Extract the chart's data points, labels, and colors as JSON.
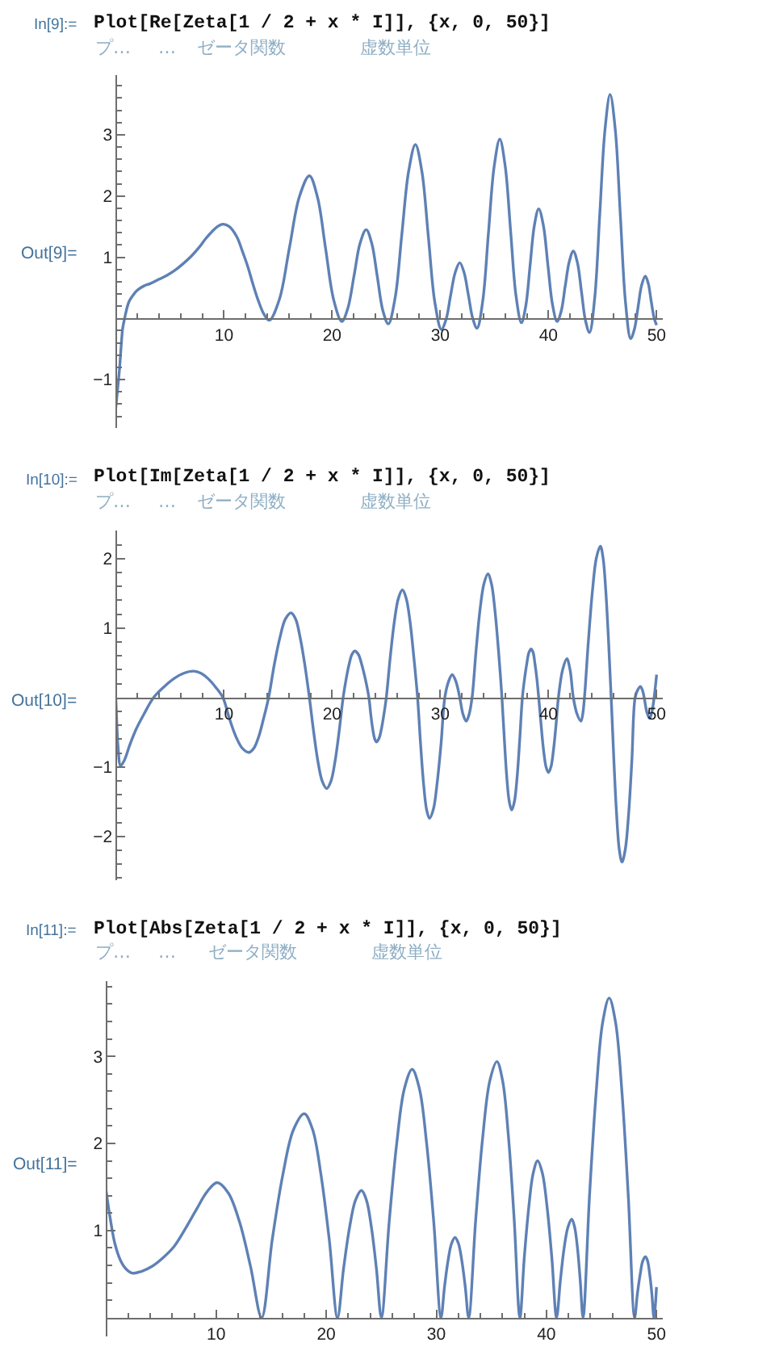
{
  "chart_data": [
    {
      "type": "line",
      "title": "Plot[Re[Zeta[1 / 2 + x * I]], {x, 0, 50}]",
      "annotations": [
        "In[9]:=",
        "プ…",
        "…",
        "ゼータ関数",
        "虚数単位",
        "Out[9]="
      ],
      "x": [
        0,
        0.15,
        0.35,
        0.5,
        0.64,
        0.84,
        1.05,
        1.24,
        1.6,
        1.98,
        2.6,
        3.2,
        4,
        4.7,
        5.5,
        6.2,
        7,
        7.7,
        8.3,
        8.9,
        9.4,
        9.9,
        10.5,
        11.2,
        11.7,
        12.2,
        12.7,
        13.2,
        13.7,
        14.2,
        15.125,
        16.05,
        16.975,
        17.9,
        18.65,
        19.4,
        20.15,
        20.9,
        21.46,
        22.03,
        22.59,
        23.15,
        23.66,
        24.18,
        24.69,
        25.2,
        25.83,
        26.45,
        27.08,
        27.7,
        28.3,
        28.9,
        29.5,
        30.1,
        30.53,
        30.95,
        31.38,
        31.8,
        32.2,
        32.6,
        33,
        33.4,
        33.93,
        34.45,
        34.98,
        35.5,
        36,
        36.5,
        37,
        37.5,
        37.9,
        38.3,
        38.7,
        39.1,
        39.53,
        39.95,
        40.38,
        40.8,
        41.18,
        41.55,
        41.93,
        42.3,
        42.68,
        43.05,
        43.43,
        43.8,
        44.28,
        44.75,
        45.23,
        45.7,
        46.18,
        46.65,
        47.13,
        47.6,
        47.94,
        48.28,
        48.61,
        48.95,
        49.23,
        49.5,
        49.78,
        50
      ],
      "values": [
        -1.46,
        -1.2,
        -0.82,
        -0.45,
        -0.16,
        0.02,
        0.18,
        0.28,
        0.38,
        0.46,
        0.53,
        0.57,
        0.64,
        0.7,
        0.79,
        0.89,
        1.02,
        1.16,
        1.3,
        1.42,
        1.5,
        1.54,
        1.5,
        1.33,
        1.1,
        0.85,
        0.55,
        0.28,
        0.07,
        -0.03,
        0.31,
        1.15,
        1.99,
        2.33,
        1.98,
        1.14,
        0.3,
        -0.05,
        0.17,
        0.7,
        1.23,
        1.45,
        1.23,
        0.68,
        0.13,
        -0.09,
        0.34,
        1.38,
        2.41,
        2.84,
        2.4,
        1.33,
        0.26,
        -0.18,
        -0.02,
        0.37,
        0.75,
        0.91,
        0.75,
        0.38,
        0,
        -0.16,
        0.29,
        1.39,
        2.48,
        2.93,
        2.49,
        1.43,
        0.37,
        -0.07,
        0.2,
        0.86,
        1.52,
        1.79,
        1.52,
        0.87,
        0.22,
        -0.05,
        0.12,
        0.53,
        0.93,
        1.1,
        0.91,
        0.44,
        -0.04,
        -0.23,
        0.34,
        1.72,
        3.09,
        3.66,
        3.08,
        1.67,
        0.25,
        -0.33,
        -0.18,
        0.18,
        0.54,
        0.69,
        0.57,
        0.28,
        0,
        -0.11
      ],
      "color": "#5e81b5",
      "xlim": [
        0,
        50.6
      ],
      "ylim": [
        -1.79,
        3.97
      ],
      "xticks": [
        {
          "value": 2,
          "label": null
        },
        {
          "value": 4,
          "label": null
        },
        {
          "value": 6,
          "label": null
        },
        {
          "value": 8,
          "label": null
        },
        10,
        {
          "value": 12,
          "label": null
        },
        {
          "value": 14,
          "label": null
        },
        {
          "value": 16,
          "label": null
        },
        {
          "value": 18,
          "label": null
        },
        20,
        {
          "value": 22,
          "label": null
        },
        {
          "value": 24,
          "label": null
        },
        {
          "value": 26,
          "label": null
        },
        {
          "value": 28,
          "label": null
        },
        30,
        {
          "value": 32,
          "label": null
        },
        {
          "value": 34,
          "label": null
        },
        {
          "value": 36,
          "label": null
        },
        {
          "value": 38,
          "label": null
        },
        40,
        {
          "value": 42,
          "label": null
        },
        {
          "value": 44,
          "label": null
        },
        {
          "value": 46,
          "label": null
        },
        {
          "value": 48,
          "label": null
        },
        50
      ],
      "yticks": [
        {
          "value": -1.6,
          "label": null
        },
        {
          "value": -1.4,
          "label": null
        },
        {
          "value": -1.2,
          "label": null
        },
        {
          "value": -1,
          "label": "−1"
        },
        {
          "value": -0.8,
          "label": null
        },
        {
          "value": -0.6,
          "label": null
        },
        {
          "value": -0.4,
          "label": null
        },
        {
          "value": -0.2,
          "label": null
        },
        {
          "value": 0.2,
          "label": null
        },
        {
          "value": 0.4,
          "label": null
        },
        {
          "value": 0.6,
          "label": null
        },
        {
          "value": 0.8,
          "label": null
        },
        1,
        {
          "value": 1.2,
          "label": null
        },
        {
          "value": 1.4,
          "label": null
        },
        {
          "value": 1.6,
          "label": null
        },
        {
          "value": 1.8,
          "label": null
        },
        2,
        {
          "value": 2.2,
          "label": null
        },
        {
          "value": 2.4,
          "label": null
        },
        {
          "value": 2.6,
          "label": null
        },
        {
          "value": 2.8,
          "label": null
        },
        3,
        {
          "value": 3.2,
          "label": null
        },
        {
          "value": 3.4,
          "label": null
        },
        {
          "value": 3.6,
          "label": null
        },
        {
          "value": 3.8,
          "label": null
        }
      ]
    },
    {
      "type": "line",
      "title": "Plot[Im[Zeta[1 / 2 + x * I]], {x, 0, 50}]",
      "annotations": [
        "In[10]:=",
        "プ…",
        "…",
        "ゼータ関数",
        "虚数単位",
        "Out[10]="
      ],
      "x": [
        0,
        0.1,
        0.2,
        0.45,
        0.8,
        1.3,
        1.9,
        2.6,
        3.5,
        4.43,
        5.35,
        6.28,
        7.2,
        7.88,
        8.55,
        9.23,
        9.9,
        10.5,
        11.1,
        11.7,
        12.3,
        12.76,
        13.22,
        13.67,
        14.13,
        14.65,
        15.17,
        15.68,
        16.2,
        16.63,
        17.05,
        17.48,
        17.9,
        18.3,
        18.7,
        19.1,
        19.5,
        19.88,
        20.26,
        20.64,
        21.02,
        21.29,
        21.56,
        21.83,
        22.1,
        22.43,
        22.75,
        23.08,
        23.4,
        23.58,
        23.75,
        23.93,
        24.1,
        24.33,
        24.56,
        24.78,
        25.01,
        25.38,
        25.76,
        26.13,
        26.5,
        26.85,
        27.2,
        27.55,
        27.9,
        28.18,
        28.45,
        28.73,
        29,
        29.36,
        29.71,
        30.07,
        30.42,
        30.76,
        31.1,
        31.45,
        31.8,
        32.1,
        32.4,
        32.67,
        32.94,
        33.31,
        33.67,
        34.04,
        34.4,
        34.73,
        35.05,
        35.38,
        35.7,
        35.93,
        36.15,
        36.38,
        36.6,
        36.85,
        37.1,
        37.34,
        37.59,
        37.79,
        38,
        38.2,
        38.4,
        38.58,
        38.75,
        38.93,
        39.1,
        39.33,
        39.55,
        39.78,
        40,
        40.23,
        40.46,
        40.69,
        40.92,
        41.31,
        41.7,
        42,
        42.3,
        42.65,
        43,
        43.17,
        43.33,
        43.7,
        44.07,
        44.43,
        44.8,
        45.05,
        45.3,
        45.55,
        45.8,
        46.05,
        46.3,
        46.55,
        46.8,
        47.1,
        47.41,
        47.71,
        48.01,
        48.25,
        48.5,
        48.68,
        48.85,
        49.1,
        49.35,
        49.56,
        49.77,
        50
      ],
      "values": [
        0,
        -0.38,
        -0.68,
        -0.98,
        -0.9,
        -0.68,
        -0.45,
        -0.24,
        0,
        0.15,
        0.27,
        0.35,
        0.38,
        0.35,
        0.27,
        0.15,
        0,
        -0.3,
        -0.56,
        -0.73,
        -0.79,
        -0.73,
        -0.56,
        -0.3,
        0,
        0.47,
        0.86,
        1.13,
        1.22,
        1.13,
        0.86,
        0.47,
        0,
        -0.5,
        -0.93,
        -1.21,
        -1.31,
        -1.21,
        -0.93,
        -0.5,
        0,
        0.26,
        0.47,
        0.62,
        0.67,
        0.62,
        0.47,
        0.26,
        0,
        -0.25,
        -0.45,
        -0.59,
        -0.64,
        -0.59,
        -0.45,
        -0.25,
        0,
        0.59,
        1.1,
        1.43,
        1.55,
        1.43,
        1.1,
        0.59,
        0,
        -0.67,
        -1.23,
        -1.61,
        -1.74,
        -1.61,
        -1.23,
        -0.67,
        0,
        0.23,
        0.33,
        0.23,
        0,
        -0.24,
        -0.34,
        -0.24,
        0,
        0.68,
        1.26,
        1.64,
        1.78,
        1.64,
        1.26,
        0.68,
        0,
        -0.62,
        -1.15,
        -1.5,
        -1.62,
        -1.5,
        -1.15,
        -0.62,
        0,
        0.27,
        0.49,
        0.65,
        0.7,
        0.65,
        0.49,
        0.27,
        0,
        -0.41,
        -0.76,
        -1,
        -1.08,
        -1,
        -0.76,
        -0.41,
        0,
        0.4,
        0.56,
        0.4,
        0,
        -0.24,
        -0.34,
        -0.24,
        0,
        0.83,
        1.54,
        2.01,
        2.18,
        2.01,
        1.54,
        0.83,
        0,
        -0.91,
        -1.68,
        -2.19,
        -2.37,
        -2.19,
        -1.68,
        -0.91,
        0,
        0.11,
        0.16,
        0.11,
        0,
        -0.21,
        -0.3,
        -0.21,
        0,
        0.33
      ],
      "color": "#5e81b5",
      "xlim": [
        0,
        50.6
      ],
      "ylim": [
        -2.63,
        2.41
      ],
      "xticks": [
        {
          "value": 2,
          "label": null
        },
        {
          "value": 4,
          "label": null
        },
        {
          "value": 6,
          "label": null
        },
        {
          "value": 8,
          "label": null
        },
        10,
        {
          "value": 12,
          "label": null
        },
        {
          "value": 14,
          "label": null
        },
        {
          "value": 16,
          "label": null
        },
        {
          "value": 18,
          "label": null
        },
        20,
        {
          "value": 22,
          "label": null
        },
        {
          "value": 24,
          "label": null
        },
        {
          "value": 26,
          "label": null
        },
        {
          "value": 28,
          "label": null
        },
        30,
        {
          "value": 32,
          "label": null
        },
        {
          "value": 34,
          "label": null
        },
        {
          "value": 36,
          "label": null
        },
        {
          "value": 38,
          "label": null
        },
        40,
        {
          "value": 42,
          "label": null
        },
        {
          "value": 44,
          "label": null
        },
        {
          "value": 46,
          "label": null
        },
        {
          "value": 48,
          "label": null
        },
        50
      ],
      "yticks": [
        {
          "value": -2.6,
          "label": null
        },
        {
          "value": -2.4,
          "label": null
        },
        {
          "value": -2.2,
          "label": null
        },
        {
          "value": -2,
          "label": "−2"
        },
        {
          "value": -1.8,
          "label": null
        },
        {
          "value": -1.6,
          "label": null
        },
        {
          "value": -1.4,
          "label": null
        },
        {
          "value": -1.2,
          "label": null
        },
        {
          "value": -1,
          "label": "−1"
        },
        {
          "value": -0.8,
          "label": null
        },
        {
          "value": -0.6,
          "label": null
        },
        {
          "value": -0.4,
          "label": null
        },
        {
          "value": -0.2,
          "label": null
        },
        {
          "value": 0.2,
          "label": null
        },
        {
          "value": 0.4,
          "label": null
        },
        {
          "value": 0.6,
          "label": null
        },
        {
          "value": 0.8,
          "label": null
        },
        1,
        {
          "value": 1.2,
          "label": null
        },
        {
          "value": 1.4,
          "label": null
        },
        {
          "value": 1.6,
          "label": null
        },
        {
          "value": 1.8,
          "label": null
        },
        2,
        {
          "value": 2.2,
          "label": null
        }
      ]
    },
    {
      "type": "line",
      "title": "Plot[Abs[Zeta[1 / 2 + x * I]], {x, 0, 50}]",
      "annotations": [
        "In[11]:=",
        "プ…",
        "…",
        "ゼータ関数",
        "虚数単位",
        "Out[11]="
      ],
      "x": [
        0,
        0.4,
        0.8,
        1.3,
        1.8,
        2.4,
        3.2,
        4.2,
        5.2,
        6.2,
        7.2,
        8.2,
        9.2,
        10.1,
        11.11,
        12.12,
        13.12,
        14.13,
        15.1,
        16.07,
        17.03,
        18,
        18.76,
        19.51,
        20.27,
        21.02,
        21.57,
        22.11,
        22.66,
        23.2,
        23.65,
        24.11,
        24.56,
        25.01,
        25.71,
        26.41,
        27.1,
        27.8,
        28.46,
        29.11,
        29.77,
        30.42,
        30.74,
        31.06,
        31.38,
        31.7,
        32.01,
        32.32,
        32.63,
        32.94,
        33.58,
        34.22,
        34.86,
        35.5,
        36.02,
        36.55,
        37.07,
        37.59,
        37.99,
        38.4,
        38.8,
        39.2,
        39.63,
        40.06,
        40.49,
        40.92,
        41.27,
        41.61,
        41.96,
        42.3,
        42.56,
        42.82,
        43.07,
        43.33,
        43.92,
        44.52,
        45.11,
        45.7,
        46.28,
        46.86,
        47.43,
        48.01,
        48.26,
        48.51,
        48.75,
        49,
        49.19,
        49.39,
        49.58,
        49.77,
        50
      ],
      "values": [
        1.46,
        1.12,
        0.85,
        0.66,
        0.56,
        0.51,
        0.53,
        0.59,
        0.69,
        0.82,
        1.02,
        1.24,
        1.45,
        1.55,
        1.43,
        1.1,
        0.59,
        0,
        0.9,
        1.65,
        2.16,
        2.34,
        2.16,
        1.65,
        0.9,
        0,
        0.56,
        1.03,
        1.35,
        1.46,
        1.35,
        1.03,
        0.56,
        0,
        1.09,
        2.01,
        2.63,
        2.85,
        2.63,
        2.01,
        1.09,
        0,
        0.35,
        0.65,
        0.85,
        0.92,
        0.85,
        0.65,
        0.35,
        0,
        1.13,
        2.08,
        2.72,
        2.94,
        2.72,
        2.08,
        1.13,
        0,
        0.69,
        1.27,
        1.66,
        1.8,
        1.66,
        1.27,
        0.69,
        0,
        0.43,
        0.8,
        1.04,
        1.13,
        1.04,
        0.8,
        0.43,
        0,
        1.41,
        2.59,
        3.39,
        3.67,
        3.39,
        2.59,
        1.41,
        0,
        0.27,
        0.49,
        0.65,
        0.7,
        0.65,
        0.49,
        0.27,
        0,
        0.35
      ],
      "color": "#5e81b5",
      "xlim": [
        0,
        50.6
      ],
      "ylim": [
        -0.22,
        3.86
      ],
      "xticks": [
        {
          "value": 2,
          "label": null
        },
        {
          "value": 4,
          "label": null
        },
        {
          "value": 6,
          "label": null
        },
        {
          "value": 8,
          "label": null
        },
        10,
        {
          "value": 12,
          "label": null
        },
        {
          "value": 14,
          "label": null
        },
        {
          "value": 16,
          "label": null
        },
        {
          "value": 18,
          "label": null
        },
        20,
        {
          "value": 22,
          "label": null
        },
        {
          "value": 24,
          "label": null
        },
        {
          "value": 26,
          "label": null
        },
        {
          "value": 28,
          "label": null
        },
        30,
        {
          "value": 32,
          "label": null
        },
        {
          "value": 34,
          "label": null
        },
        {
          "value": 36,
          "label": null
        },
        {
          "value": 38,
          "label": null
        },
        40,
        {
          "value": 42,
          "label": null
        },
        {
          "value": 44,
          "label": null
        },
        {
          "value": 46,
          "label": null
        },
        {
          "value": 48,
          "label": null
        },
        50
      ],
      "yticks": [
        {
          "value": 0.2,
          "label": null
        },
        {
          "value": 0.4,
          "label": null
        },
        {
          "value": 0.6,
          "label": null
        },
        {
          "value": 0.8,
          "label": null
        },
        1,
        {
          "value": 1.2,
          "label": null
        },
        {
          "value": 1.4,
          "label": null
        },
        {
          "value": 1.6,
          "label": null
        },
        {
          "value": 1.8,
          "label": null
        },
        2,
        {
          "value": 2.2,
          "label": null
        },
        {
          "value": 2.4,
          "label": null
        },
        {
          "value": 2.6,
          "label": null
        },
        {
          "value": 2.8,
          "label": null
        },
        3,
        {
          "value": 3.2,
          "label": null
        },
        {
          "value": 3.4,
          "label": null
        },
        {
          "value": 3.6,
          "label": null
        },
        {
          "value": 3.8,
          "label": null
        }
      ]
    }
  ]
}
